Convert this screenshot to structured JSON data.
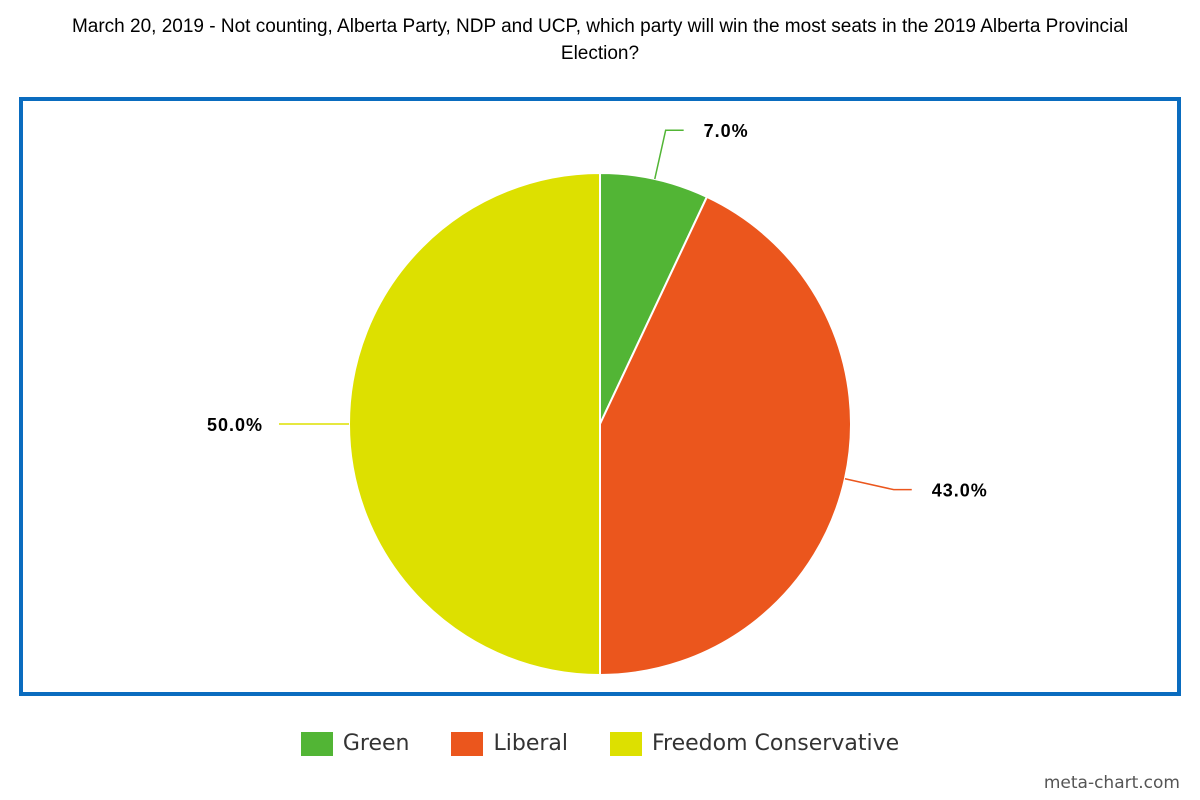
{
  "chart_data": {
    "type": "pie",
    "title": "March 20, 2019 - Not counting, Alberta Party, NDP and UCP, which party will win the most seats in the 2019 Alberta Provincial Election?",
    "categories": [
      "Green",
      "Liberal",
      "Freedom Conservative"
    ],
    "values": [
      7,
      43,
      50
    ],
    "value_labels": [
      "7.0%",
      "43.0%",
      "50.0%"
    ],
    "colors": [
      "#52b535",
      "#eb561d",
      "#dde000"
    ],
    "credit": "meta-chart.com"
  }
}
